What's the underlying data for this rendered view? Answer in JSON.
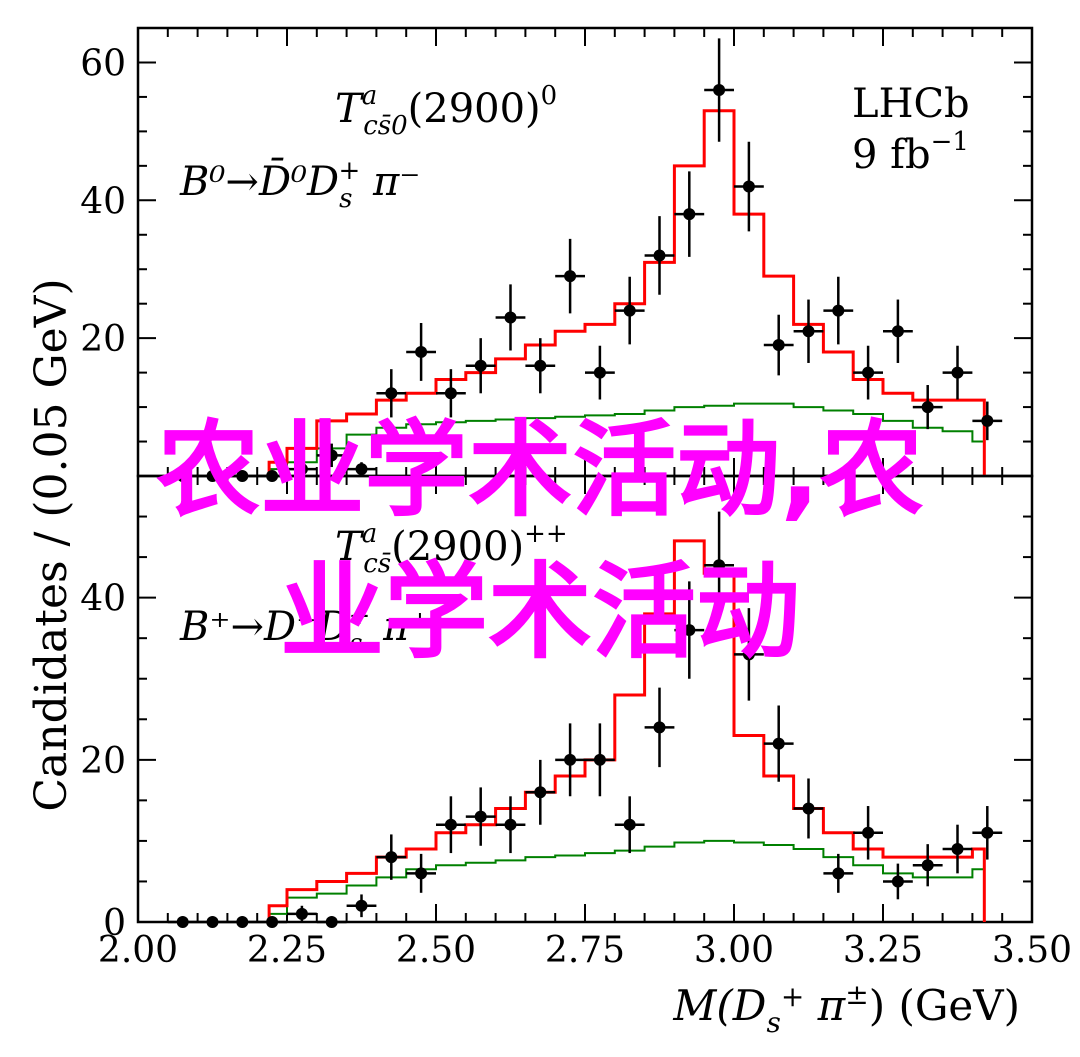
{
  "chart_data": [
    {
      "type": "histogram-with-points",
      "panel": "top",
      "title_line1": "T",
      "title_sup": "a",
      "title_sub": "cs̄0",
      "title_paren": "(2900)",
      "title_charge": "0",
      "decay": "B⁰→D̄⁰D",
      "decay_sub": "s",
      "decay_sup": "+",
      "decay_tail": " π⁻",
      "experiment": "LHCb",
      "lumi": "9 fb",
      "lumi_sup": "−1",
      "ylim": [
        0,
        65
      ],
      "yticks": [
        {
          "v": 20,
          "label": "20"
        },
        {
          "v": 40,
          "label": "40"
        },
        {
          "v": 60,
          "label": "60"
        }
      ],
      "points": {
        "x": [
          2.075,
          2.125,
          2.175,
          2.225,
          2.275,
          2.325,
          2.375,
          2.425,
          2.475,
          2.525,
          2.575,
          2.625,
          2.675,
          2.725,
          2.775,
          2.825,
          2.875,
          2.925,
          2.975,
          3.025,
          3.075,
          3.125,
          3.175,
          3.225,
          3.275,
          3.325,
          3.375,
          3.425
        ],
        "y": [
          0,
          0,
          0,
          0,
          1,
          3,
          1,
          12,
          18,
          12,
          16,
          23,
          16,
          29,
          15,
          24,
          32,
          38,
          56,
          42,
          19,
          21,
          24,
          15,
          21,
          10,
          15,
          8
        ],
        "err": [
          0,
          0,
          0,
          0,
          1,
          1.7,
          1,
          3.5,
          4.2,
          3.5,
          4,
          4.8,
          4,
          5.4,
          3.9,
          4.9,
          5.7,
          6.2,
          7.5,
          6.5,
          4.4,
          4.6,
          4.9,
          3.9,
          4.6,
          3.2,
          3.9,
          2.8
        ]
      },
      "total_fit": {
        "edges": [
          2.22,
          2.25,
          2.3,
          2.35,
          2.4,
          2.45,
          2.5,
          2.55,
          2.6,
          2.65,
          2.7,
          2.75,
          2.8,
          2.85,
          2.9,
          2.95,
          3.0,
          3.05,
          3.1,
          3.15,
          3.2,
          3.25,
          3.3,
          3.35,
          3.4,
          3.42
        ],
        "values": [
          2,
          4,
          8,
          9,
          11,
          12,
          14,
          15,
          17,
          19,
          21,
          22,
          25,
          31,
          45,
          53,
          38,
          29,
          22,
          18,
          14,
          12,
          11,
          11,
          11,
          1
        ]
      },
      "component_fit": {
        "edges": [
          2.22,
          2.25,
          2.3,
          2.35,
          2.4,
          2.45,
          2.5,
          2.55,
          2.6,
          2.65,
          2.7,
          2.75,
          2.8,
          2.85,
          2.9,
          2.95,
          3.0,
          3.05,
          3.1,
          3.15,
          3.2,
          3.25,
          3.3,
          3.35,
          3.4,
          3.42
        ],
        "values": [
          1,
          2,
          4,
          6,
          7,
          7.5,
          7.8,
          8,
          8.2,
          8.4,
          8.6,
          8.8,
          9,
          9.5,
          10,
          10.2,
          10.5,
          10.5,
          10,
          9.5,
          9,
          8,
          7,
          6.5,
          5,
          1
        ]
      }
    },
    {
      "type": "histogram-with-points",
      "panel": "bottom",
      "title_line1": "T",
      "title_sup": "a",
      "title_sub": "cs̄",
      "title_paren": "(2900)",
      "title_charge": "++",
      "decay": "B⁺→D⁻D",
      "decay_sub": "s",
      "decay_sup": "+",
      "decay_tail": " π⁺",
      "ylim": [
        0,
        55
      ],
      "yticks": [
        {
          "v": 0,
          "label": "0"
        },
        {
          "v": 20,
          "label": "20"
        },
        {
          "v": 40,
          "label": "40"
        }
      ],
      "points": {
        "x": [
          2.075,
          2.125,
          2.175,
          2.225,
          2.275,
          2.325,
          2.375,
          2.425,
          2.475,
          2.525,
          2.575,
          2.625,
          2.675,
          2.725,
          2.775,
          2.825,
          2.875,
          2.925,
          2.975,
          3.025,
          3.075,
          3.125,
          3.175,
          3.225,
          3.275,
          3.325,
          3.375,
          3.425
        ],
        "y": [
          0,
          0,
          0,
          0,
          1,
          0,
          2,
          8,
          6,
          12,
          13,
          12,
          16,
          20,
          20,
          12,
          24,
          36,
          44,
          33,
          22,
          14,
          6,
          11,
          5,
          7,
          9,
          11
        ],
        "err": [
          0,
          0,
          0,
          0,
          1,
          0,
          1.4,
          2.8,
          2.4,
          3.5,
          3.6,
          3.5,
          4,
          4.5,
          4.5,
          3.5,
          4.9,
          6,
          6.6,
          5.7,
          4.7,
          3.7,
          2.4,
          3.3,
          2.2,
          2.6,
          3,
          3.3
        ]
      },
      "total_fit": {
        "edges": [
          2.22,
          2.25,
          2.3,
          2.35,
          2.4,
          2.45,
          2.5,
          2.55,
          2.6,
          2.65,
          2.7,
          2.75,
          2.8,
          2.85,
          2.9,
          2.95,
          3.0,
          3.05,
          3.1,
          3.15,
          3.2,
          3.25,
          3.3,
          3.35,
          3.4,
          3.42
        ],
        "values": [
          2,
          4,
          5,
          6,
          8,
          9,
          11,
          12,
          14,
          16,
          18,
          20,
          28,
          38,
          47,
          43,
          23,
          18,
          14,
          11,
          9,
          8,
          8,
          8,
          9,
          0.5
        ],
        "note": ""
      },
      "component_fit": {
        "edges": [
          2.22,
          2.25,
          2.3,
          2.35,
          2.4,
          2.45,
          2.5,
          2.55,
          2.6,
          2.65,
          2.7,
          2.75,
          2.8,
          2.85,
          2.9,
          2.95,
          3.0,
          3.05,
          3.1,
          3.15,
          3.2,
          3.25,
          3.3,
          3.35,
          3.4,
          3.42
        ],
        "values": [
          1,
          3,
          3.5,
          4.5,
          5.5,
          6.5,
          7,
          7.3,
          7.6,
          8,
          8.2,
          8.5,
          8.8,
          9.3,
          9.8,
          10,
          9.8,
          9.5,
          9,
          8,
          7,
          6,
          5.5,
          5.5,
          6.5,
          0.5
        ]
      }
    }
  ],
  "shared": {
    "ylabel": "Candidates / (0.05 GeV)",
    "xlabel_main": "M(D",
    "xlabel_sub": "s",
    "xlabel_sup": "+",
    "xlabel_pi": " π",
    "xlabel_pi_sup": "±",
    "xlabel_tail": ") (GeV)",
    "xlim": [
      2.0,
      3.5
    ],
    "xticks": [
      {
        "v": 2.0,
        "label": "2.00"
      },
      {
        "v": 2.25,
        "label": "2.25"
      },
      {
        "v": 2.5,
        "label": "2.50"
      },
      {
        "v": 2.75,
        "label": "2.75"
      },
      {
        "v": 3.0,
        "label": "3.00"
      },
      {
        "v": 3.25,
        "label": "3.25"
      },
      {
        "v": 3.5,
        "label": "3.50"
      }
    ],
    "colors": {
      "total": "#ff0000",
      "component": "#008000",
      "points": "#000000"
    }
  },
  "overlay": {
    "line1": "农业学术活动,农",
    "line2": "业学术活动"
  }
}
